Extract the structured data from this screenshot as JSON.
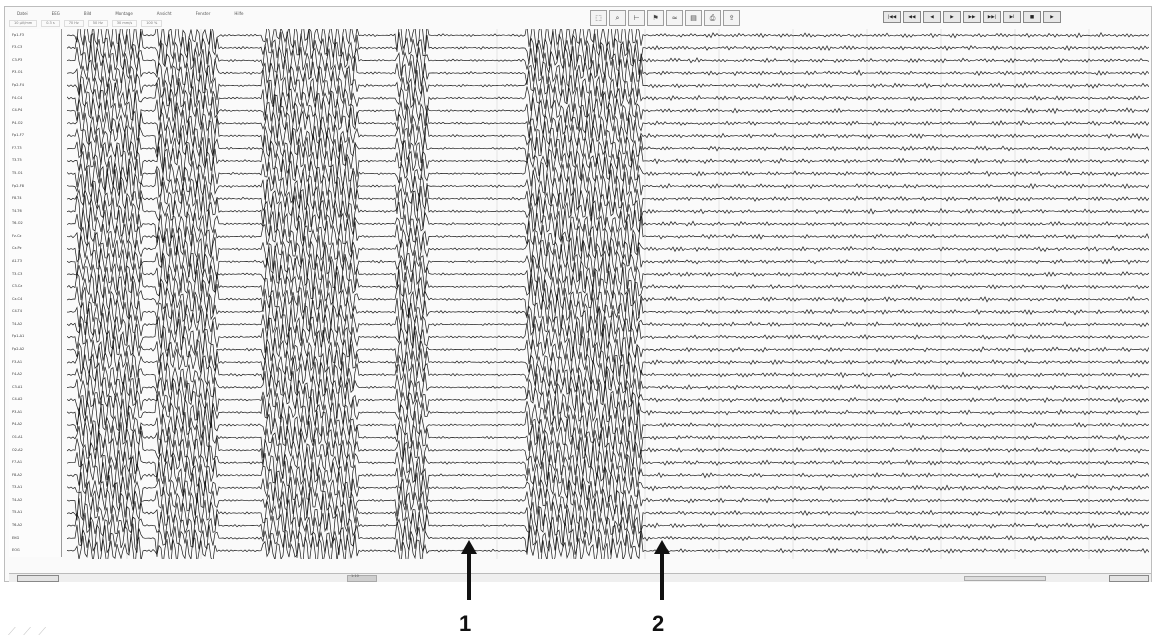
{
  "menubar": {
    "items": [
      "Datei",
      "EEG",
      "Bild",
      "Montage",
      "Ansicht",
      "Fenster",
      "Hilfe"
    ]
  },
  "infobar": {
    "fields": [
      "10 µV/mm",
      "0.3 s",
      "70 Hz",
      "50 Hz",
      "30 mm/s",
      "100 %"
    ]
  },
  "toolbar_center": {
    "icons": [
      "select-icon",
      "zoom-icon",
      "measure-icon",
      "marker-icon",
      "filter-icon",
      "montage-icon",
      "print-icon",
      "export-icon"
    ]
  },
  "toolbar_right": {
    "buttons": [
      "|◀◀",
      "◀◀",
      "◀",
      "▶",
      "▶▶",
      "▶▶|",
      "▶I",
      "■",
      "▶"
    ]
  },
  "channels": [
    "Fp1-F3",
    "F3-C3",
    "C3-P3",
    "P3-O1",
    "Fp2-F4",
    "F4-C4",
    "C4-P4",
    "P4-O2",
    "Fp1-F7",
    "F7-T3",
    "T3-T5",
    "T5-O1",
    "Fp2-F8",
    "F8-T4",
    "T4-T6",
    "T6-O2",
    "Fz-Cz",
    "Cz-Pz",
    "A1-T3",
    "T3-C3",
    "C3-Cz",
    "Cz-C4",
    "C4-T4",
    "T4-A2",
    "Fp1-A1",
    "Fp2-A2",
    "F3-A1",
    "F4-A2",
    "C3-A1",
    "C4-A2",
    "P3-A1",
    "P4-A2",
    "O1-A1",
    "O2-A2",
    "F7-A1",
    "F8-A2",
    "T3-A1",
    "T4-A2",
    "T5-A1",
    "T6-A2",
    "EKG",
    "EOG"
  ],
  "annotations": [
    {
      "label": "1"
    },
    {
      "label": "2"
    }
  ],
  "bottom": {
    "scroll_value": "1:10"
  },
  "colors": {
    "trace": "#1a1a1a",
    "grid": "#d6d6d6",
    "arrow": "#111111"
  }
}
